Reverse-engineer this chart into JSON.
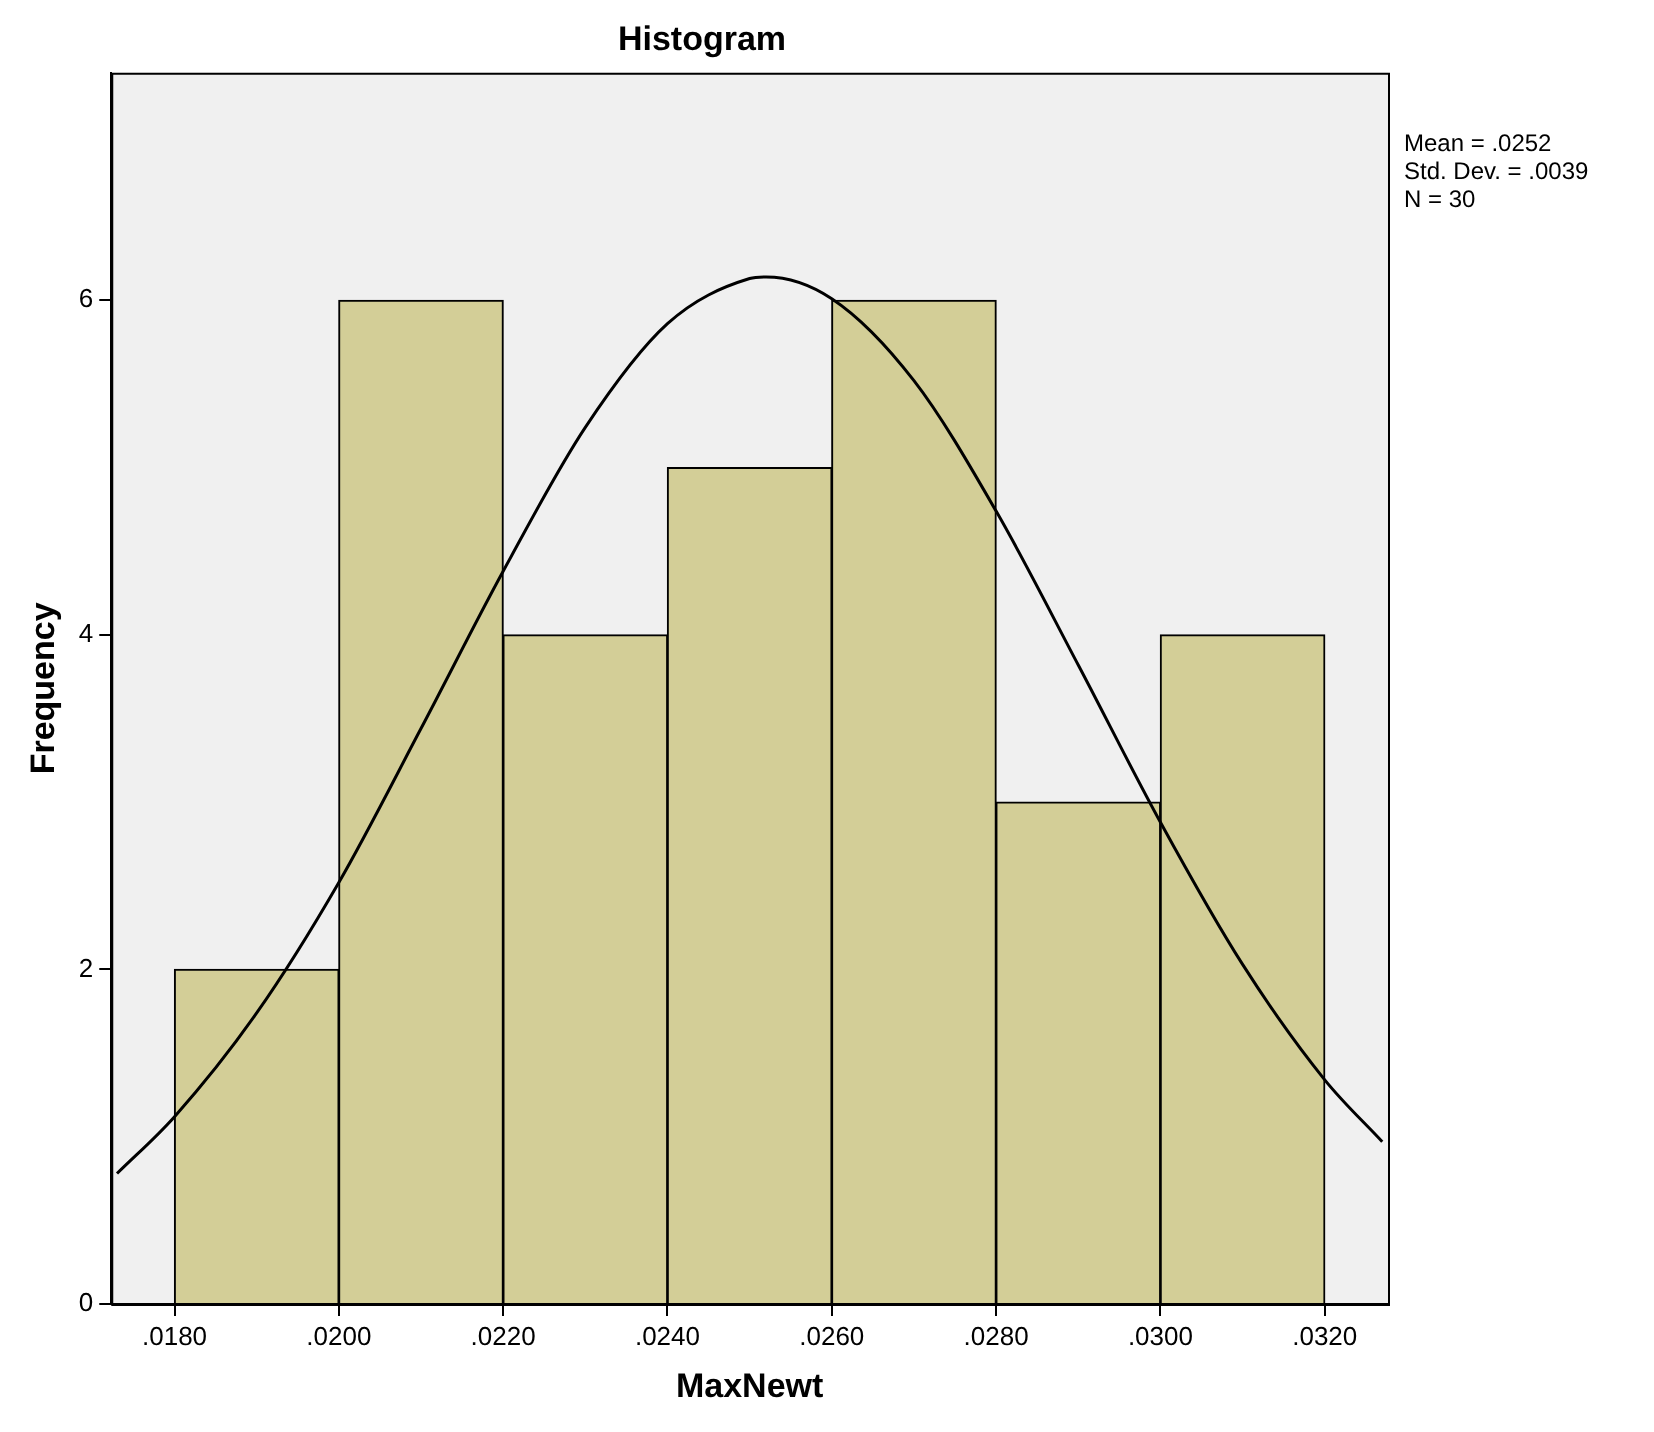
{
  "chart_data": {
    "type": "histogram",
    "title": "Histogram",
    "xlabel": "MaxNewt",
    "ylabel": "Frequency",
    "bins": [
      0.018,
      0.02,
      0.022,
      0.024,
      0.026,
      0.028,
      0.03,
      0.032
    ],
    "values": [
      2,
      6,
      4,
      5,
      6,
      3,
      4
    ],
    "color": "#d3ce97",
    "series": [
      {
        "type": "line",
        "color": "#000000",
        "x": [
          0.0173,
          0.018,
          0.019,
          0.02,
          0.021,
          0.022,
          0.023,
          0.024,
          0.025,
          0.0252,
          0.026,
          0.027,
          0.028,
          0.029,
          0.03,
          0.031,
          0.032,
          0.0327
        ],
        "values": [
          0.78,
          1.12,
          1.74,
          2.52,
          3.44,
          4.38,
          5.24,
          5.86,
          6.13,
          6.14,
          6.01,
          5.52,
          4.74,
          3.82,
          2.88,
          2.03,
          1.34,
          0.97
        ]
      }
    ],
    "xlim": [
      0.01723,
      0.03277
    ],
    "xticks": [
      {
        "value": 0.018,
        "label": ".0180"
      },
      {
        "value": 0.02,
        "label": ".0200"
      },
      {
        "value": 0.022,
        "label": ".0220"
      },
      {
        "value": 0.024,
        "label": ".0240"
      },
      {
        "value": 0.026,
        "label": ".0260"
      },
      {
        "value": 0.028,
        "label": ".0280"
      },
      {
        "value": 0.03,
        "label": ".0300"
      },
      {
        "value": 0.032,
        "label": ".0320"
      }
    ],
    "ylim": [
      0,
      7.36
    ],
    "yticks": [
      0,
      2,
      4,
      6
    ],
    "grid": false,
    "legend": false,
    "marker": "none",
    "line_style": "solid",
    "annotations": [
      "Mean = .0252",
      "Std. Dev. = .0039",
      "N = 30"
    ]
  }
}
